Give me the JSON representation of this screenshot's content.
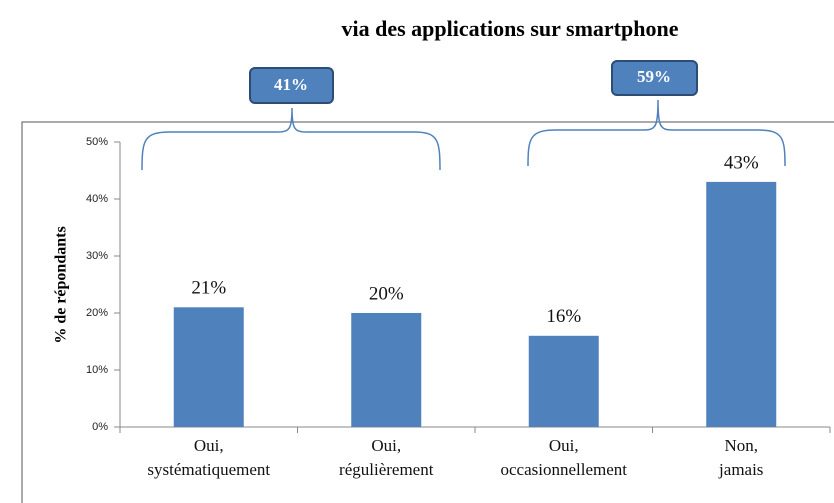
{
  "chart_data": {
    "type": "bar",
    "title": "via des applications sur smartphone",
    "y_label": "% de répondants",
    "categories": [
      [
        "Oui,",
        "systématiquement"
      ],
      [
        "Oui,",
        "régulièrement"
      ],
      [
        "Oui,",
        "occasionnellement"
      ],
      [
        "Non,",
        "jamais"
      ]
    ],
    "values": [
      21,
      20,
      16,
      43
    ],
    "value_labels": [
      "21%",
      "20%",
      "16%",
      "43%"
    ],
    "color": "#4f81bd",
    "ylim": [
      0,
      50
    ],
    "yticks": [
      {
        "value": 0,
        "label": "0%"
      },
      {
        "value": 10,
        "label": "10%"
      },
      {
        "value": 20,
        "label": "20%"
      },
      {
        "value": 30,
        "label": "30%"
      },
      {
        "value": 40,
        "label": "40%"
      },
      {
        "value": 50,
        "label": "50%"
      }
    ],
    "annotations": [
      {
        "text": "41%"
      },
      {
        "text": "59%"
      }
    ]
  }
}
